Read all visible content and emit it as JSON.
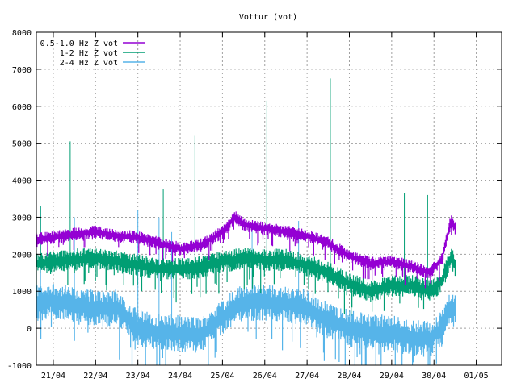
{
  "chart_data": {
    "type": "line",
    "title": "Vottur (vot)",
    "xlabel": "",
    "ylabel": "",
    "ylim": [
      -1000,
      8000
    ],
    "yticks": [
      -1000,
      0,
      1000,
      2000,
      3000,
      4000,
      5000,
      6000,
      7000,
      8000
    ],
    "xlim": [
      20.6,
      31.6
    ],
    "xticks": [
      {
        "x": 21,
        "label": "21/04"
      },
      {
        "x": 22,
        "label": "22/04"
      },
      {
        "x": 23,
        "label": "23/04"
      },
      {
        "x": 24,
        "label": "24/04"
      },
      {
        "x": 25,
        "label": "25/04"
      },
      {
        "x": 26,
        "label": "26/04"
      },
      {
        "x": 27,
        "label": "27/04"
      },
      {
        "x": 28,
        "label": "28/04"
      },
      {
        "x": 29,
        "label": "29/04"
      },
      {
        "x": 30,
        "label": "30/04"
      },
      {
        "x": 31,
        "label": "01/05"
      }
    ],
    "grid": true,
    "legend_position": "top-left",
    "series": [
      {
        "name": "0.5-1.0 Hz Z vot",
        "color": "#9400d3",
        "band": 180,
        "x": [
          20.6,
          21.0,
          21.5,
          22.0,
          22.5,
          23.0,
          23.5,
          24.0,
          24.5,
          25.0,
          25.3,
          25.5,
          26.0,
          26.5,
          27.0,
          27.5,
          28.0,
          28.5,
          29.0,
          29.5,
          29.9,
          30.2,
          30.4,
          30.5
        ],
        "y": [
          2400,
          2450,
          2550,
          2600,
          2500,
          2450,
          2300,
          2150,
          2250,
          2600,
          3000,
          2800,
          2700,
          2600,
          2500,
          2300,
          1950,
          1750,
          1800,
          1650,
          1500,
          1900,
          2900,
          2700
        ],
        "spikes": []
      },
      {
        "name": "1-2 Hz Z vot",
        "color": "#009e73",
        "band": 300,
        "x": [
          20.6,
          21.0,
          21.5,
          22.0,
          22.5,
          23.0,
          23.5,
          24.0,
          24.5,
          25.0,
          25.3,
          25.5,
          26.0,
          26.5,
          27.0,
          27.5,
          28.0,
          28.5,
          29.0,
          29.5,
          29.9,
          30.2,
          30.4,
          30.5
        ],
        "y": [
          1750,
          1800,
          1850,
          1900,
          1800,
          1700,
          1600,
          1600,
          1650,
          1800,
          1850,
          1900,
          1850,
          1850,
          1700,
          1500,
          1200,
          1000,
          1150,
          1150,
          1000,
          1300,
          1900,
          1700
        ],
        "spikes": [
          {
            "x": 20.7,
            "y": 3300
          },
          {
            "x": 21.4,
            "y": 5050
          },
          {
            "x": 23.6,
            "y": 3750
          },
          {
            "x": 24.35,
            "y": 5200
          },
          {
            "x": 26.05,
            "y": 6150
          },
          {
            "x": 26.05,
            "y": 3900
          },
          {
            "x": 27.55,
            "y": 6750
          },
          {
            "x": 29.3,
            "y": 3650
          },
          {
            "x": 29.85,
            "y": 3600
          }
        ]
      },
      {
        "name": "2-4 Hz Z vot",
        "color": "#56b4e9",
        "band": 500,
        "x": [
          20.6,
          21.0,
          21.5,
          22.0,
          22.5,
          23.0,
          23.5,
          24.0,
          24.5,
          25.0,
          25.3,
          25.5,
          26.0,
          26.5,
          27.0,
          27.5,
          28.0,
          28.5,
          29.0,
          29.5,
          29.9,
          30.2,
          30.4,
          30.5
        ],
        "y": [
          650,
          750,
          600,
          550,
          550,
          0,
          -100,
          -150,
          -200,
          300,
          600,
          700,
          700,
          650,
          550,
          200,
          0,
          -100,
          -150,
          -250,
          -300,
          0,
          600,
          500
        ],
        "spikes": [
          {
            "x": 20.7,
            "y": 3300
          },
          {
            "x": 21.5,
            "y": 3000
          },
          {
            "x": 23.0,
            "y": 3200
          },
          {
            "x": 23.5,
            "y": 3000
          },
          {
            "x": 23.8,
            "y": 2600
          },
          {
            "x": 25.7,
            "y": 2800
          },
          {
            "x": 26.8,
            "y": 2900
          }
        ]
      }
    ]
  }
}
